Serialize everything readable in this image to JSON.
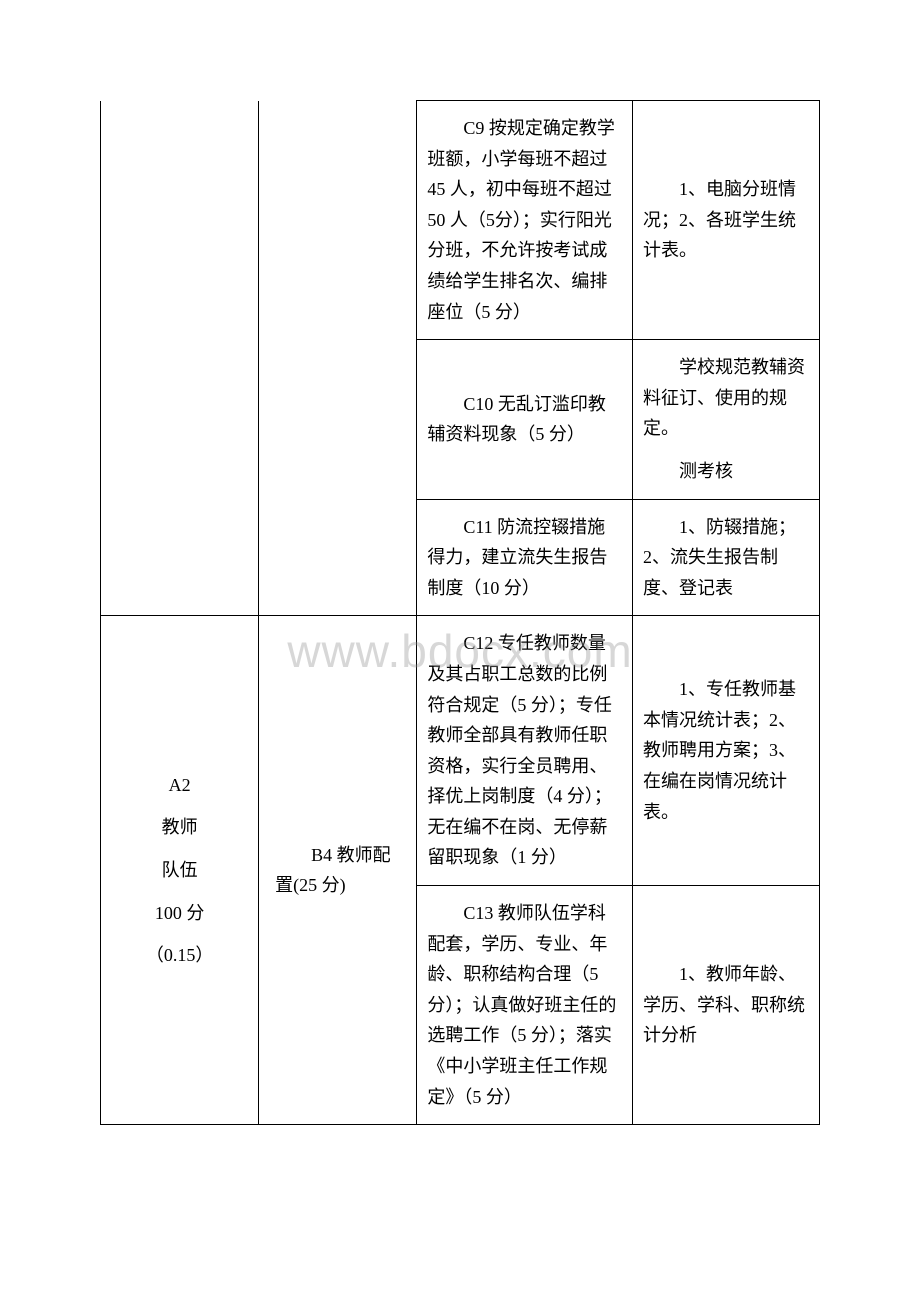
{
  "watermark": "www.bdocx.com",
  "rows": [
    {
      "col1": "",
      "col2": "",
      "col3": "　　C9 按规定确定教学班额，小学每班不超过 45 人，初中每班不超过 50 人（5分）；实行阳光分班，不允许按考试成绩给学生排名次、编排座位（5 分）",
      "col4": "　　1、电脑分班情况；2、各班学生统计表。"
    },
    {
      "col1": "",
      "col2": "",
      "col3": "　　C10 无乱订滥印教辅资料现象（5 分）",
      "col4_a": "　　学校规范教辅资料征订、使用的规定。",
      "col4_b": "　　测考核"
    },
    {
      "col1": "",
      "col2": "",
      "col3": "　　C11 防流控辍措施得力，建立流失生报告制度（10 分）",
      "col4": "　　1、防辍措施；2、流失生报告制度、登记表"
    },
    {
      "col1_l1": "A2",
      "col1_l2": "教师",
      "col1_l3": "队伍",
      "col1_l4": "100 分",
      "col1_l5": "（0.15）",
      "col2": "　　B4 教师配置(25 分)",
      "col3": "　　C12 专任教师数量及其占职工总数的比例符合规定（5 分）；专任教师全部具有教师任职资格，实行全员聘用、择优上岗制度（4 分）；无在编不在岗、无停薪留职现象（1 分）",
      "col4": "　　1、专任教师基本情况统计表；2、教师聘用方案；3、在编在岗情况统计表。"
    },
    {
      "col3": "　　C13 教师队伍学科配套，学历、专业、年龄、职称结构合理（5 分）；认真做好班主任的选聘工作（5 分）；落实《中小学班主任工作规定》（5 分）",
      "col4": "　　1、教师年龄、学历、学科、职称统计分析"
    }
  ]
}
